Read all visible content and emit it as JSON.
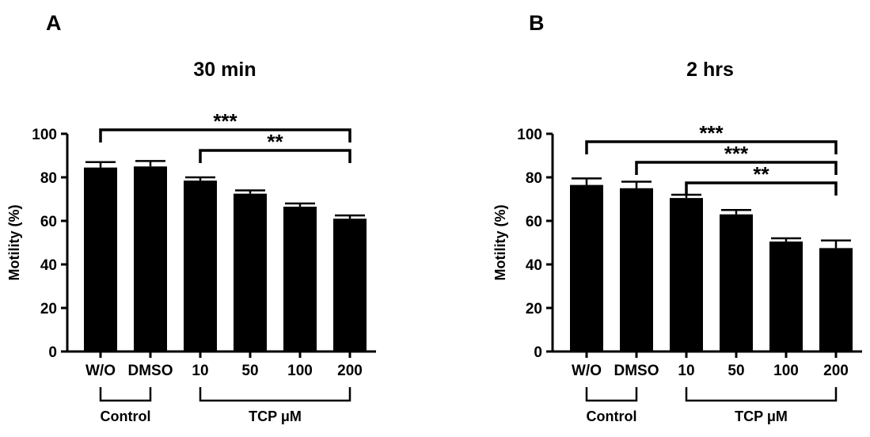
{
  "chart_data": [
    {
      "type": "bar",
      "panel_letter": "A",
      "title": "30 min",
      "ylabel": "Motility (%)",
      "xlabel": "",
      "ylim": [
        0,
        100
      ],
      "yticks": [
        0,
        20,
        40,
        60,
        80,
        100
      ],
      "grid": false,
      "categories": [
        "W/O",
        "DMSO",
        "10",
        "50",
        "100",
        "200"
      ],
      "values": [
        84.5,
        85,
        78.5,
        72.5,
        66.5,
        61
      ],
      "errors": [
        2.5,
        2.5,
        1.5,
        1.5,
        1.5,
        1.5
      ],
      "groups": [
        {
          "label": "Control",
          "from": 0,
          "to": 1
        },
        {
          "label": "TCP μM",
          "from": 2,
          "to": 5
        }
      ],
      "significance": [
        {
          "from": 0,
          "to": 5,
          "label": "***"
        },
        {
          "from": 2,
          "to": 5,
          "label": "**"
        }
      ]
    },
    {
      "type": "bar",
      "panel_letter": "B",
      "title": "2 hrs",
      "ylabel": "Motility (%)",
      "xlabel": "",
      "ylim": [
        0,
        100
      ],
      "yticks": [
        0,
        20,
        40,
        60,
        80,
        100
      ],
      "grid": false,
      "categories": [
        "W/O",
        "DMSO",
        "10",
        "50",
        "100",
        "200"
      ],
      "values": [
        76.5,
        75,
        70.5,
        63,
        50.5,
        47.5
      ],
      "errors": [
        3,
        3,
        1.5,
        2,
        1.5,
        3.5
      ],
      "groups": [
        {
          "label": "Control",
          "from": 0,
          "to": 1
        },
        {
          "label": "TCP μM",
          "from": 2,
          "to": 5
        }
      ],
      "significance": [
        {
          "from": 0,
          "to": 5,
          "label": "***"
        },
        {
          "from": 1,
          "to": 5,
          "label": "***"
        },
        {
          "from": 2,
          "to": 5,
          "label": "**"
        }
      ]
    }
  ]
}
